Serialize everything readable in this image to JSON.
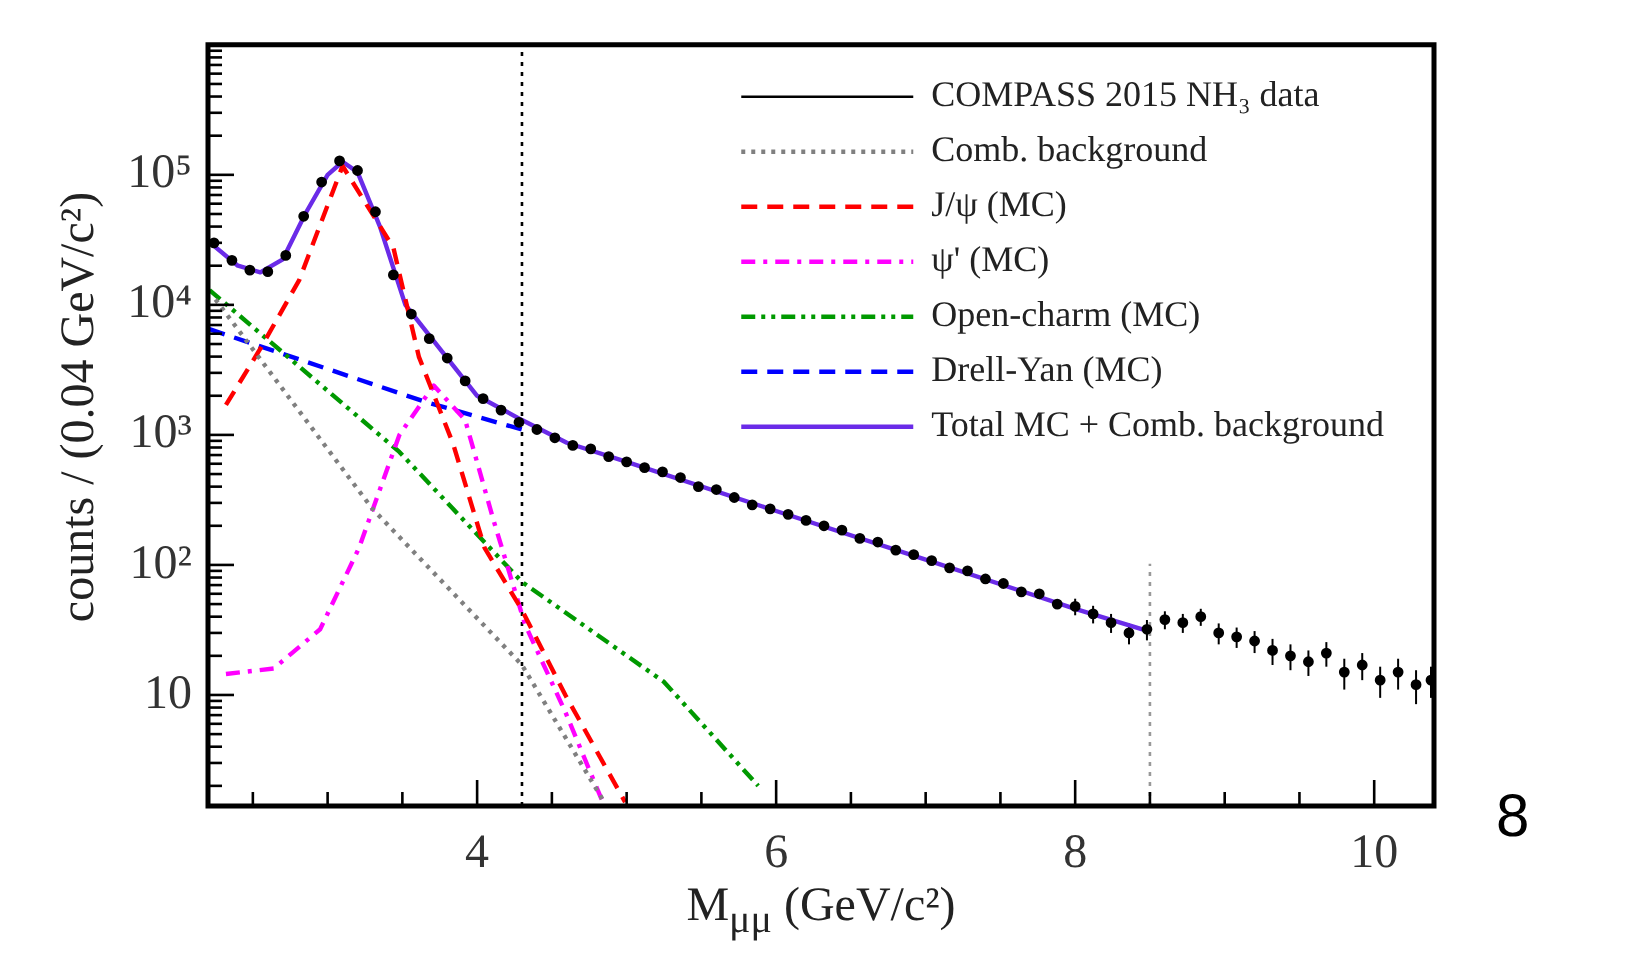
{
  "chart_data": {
    "type": "line",
    "xlabel": "M$_{μμ}$ (GeV/c²)",
    "ylabel": "counts / (0.04 GeV/c²)",
    "annotations": [
      "8"
    ],
    "log": "y",
    "legend": "top right",
    "xlim": [
      2.2,
      10.4
    ],
    "xticks": [
      {
        "value": 2.5,
        "label": null
      },
      {
        "value": 3,
        "label": null
      },
      {
        "value": 3.5,
        "label": null
      },
      4,
      {
        "value": 4.5,
        "label": null
      },
      {
        "value": 5,
        "label": null
      },
      {
        "value": 5.5,
        "label": null
      },
      6,
      {
        "value": 6.5,
        "label": null
      },
      {
        "value": 7,
        "label": null
      },
      {
        "value": 7.5,
        "label": null
      },
      8,
      {
        "value": 8.5,
        "label": null
      },
      {
        "value": 9,
        "label": null
      },
      {
        "value": 9.5,
        "label": null
      },
      10
    ],
    "ylim": [
      1.4,
      1000000
    ],
    "yticks": [
      {
        "value": 2,
        "label": null
      },
      {
        "value": 3,
        "label": null
      },
      {
        "value": 4,
        "label": null
      },
      {
        "value": 5,
        "label": null
      },
      {
        "value": 6,
        "label": null
      },
      {
        "value": 7,
        "label": null
      },
      {
        "value": 8,
        "label": null
      },
      {
        "value": 9,
        "label": null
      },
      10,
      {
        "value": 20,
        "label": null
      },
      {
        "value": 30,
        "label": null
      },
      {
        "value": 40,
        "label": null
      },
      {
        "value": 50,
        "label": null
      },
      {
        "value": 60,
        "label": null
      },
      {
        "value": 70,
        "label": null
      },
      {
        "value": 80,
        "label": null
      },
      {
        "value": 90,
        "label": null
      },
      {
        "value": 100,
        "label": "10²"
      },
      {
        "value": 200,
        "label": null
      },
      {
        "value": 300,
        "label": null
      },
      {
        "value": 400,
        "label": null
      },
      {
        "value": 500,
        "label": null
      },
      {
        "value": 600,
        "label": null
      },
      {
        "value": 700,
        "label": null
      },
      {
        "value": 800,
        "label": null
      },
      {
        "value": 900,
        "label": null
      },
      {
        "value": 1000,
        "label": "10³"
      },
      {
        "value": 2000,
        "label": null
      },
      {
        "value": 3000,
        "label": null
      },
      {
        "value": 4000,
        "label": null
      },
      {
        "value": 5000,
        "label": null
      },
      {
        "value": 6000,
        "label": null
      },
      {
        "value": 7000,
        "label": null
      },
      {
        "value": 8000,
        "label": null
      },
      {
        "value": 9000,
        "label": null
      },
      {
        "value": 10000,
        "label": "10⁴"
      },
      {
        "value": 20000,
        "label": null
      },
      {
        "value": 30000,
        "label": null
      },
      {
        "value": 40000,
        "label": null
      },
      {
        "value": 50000,
        "label": null
      },
      {
        "value": 60000,
        "label": null
      },
      {
        "value": 70000,
        "label": null
      },
      {
        "value": 80000,
        "label": null
      },
      {
        "value": 90000,
        "label": null
      },
      {
        "value": 100000,
        "label": "10⁵"
      },
      {
        "value": 200000,
        "label": null
      },
      {
        "value": 300000,
        "label": null
      },
      {
        "value": 400000,
        "label": null
      },
      {
        "value": 500000,
        "label": null
      },
      {
        "value": 600000,
        "label": null
      },
      {
        "value": 700000,
        "label": null
      },
      {
        "value": 800000,
        "label": null
      },
      {
        "value": 900000,
        "label": null
      }
    ],
    "ref_lines": [
      {
        "axis": "x",
        "value": 4.3,
        "color": "#000000",
        "line_style": "dotted"
      },
      {
        "axis": "x",
        "value": 8.5,
        "color": "#999999",
        "line_style": "dotted"
      }
    ],
    "series": [
      {
        "name": "COMPASS 2015 NH₃ data",
        "type": "scatter",
        "marker": "circle",
        "color": "#000000",
        "x": [
          2.24,
          2.36,
          2.48,
          2.6,
          2.72,
          2.84,
          2.96,
          3.08,
          3.2,
          3.32,
          3.44,
          3.56,
          3.68,
          3.8,
          3.92,
          4.04,
          4.16,
          4.28,
          4.4,
          4.52,
          4.64,
          4.76,
          4.88,
          5.0,
          5.12,
          5.24,
          5.36,
          5.48,
          5.6,
          5.72,
          5.84,
          5.96,
          6.08,
          6.2,
          6.32,
          6.44,
          6.56,
          6.68,
          6.8,
          6.92,
          7.04,
          7.16,
          7.28,
          7.4,
          7.52,
          7.64,
          7.76,
          7.88,
          8.0,
          8.12,
          8.24,
          8.36,
          8.48,
          8.6,
          8.72,
          8.84,
          8.96,
          9.08,
          9.2,
          9.32,
          9.44,
          9.56,
          9.68,
          9.8,
          9.92,
          10.04,
          10.16,
          10.28,
          10.38
        ],
        "values": [
          30000,
          22000,
          18500,
          18000,
          24000,
          48000,
          88000,
          128000,
          108000,
          52000,
          17000,
          8500,
          5500,
          3900,
          2600,
          1900,
          1550,
          1250,
          1100,
          950,
          830,
          780,
          680,
          620,
          560,
          520,
          470,
          400,
          380,
          330,
          290,
          270,
          245,
          220,
          200,
          185,
          160,
          150,
          130,
          120,
          108,
          95,
          90,
          78,
          72,
          62,
          60,
          50,
          48,
          42,
          36,
          30,
          32,
          38,
          36,
          40,
          30,
          28,
          26,
          22,
          20,
          18,
          21,
          15,
          17,
          13,
          15,
          12,
          13
        ],
        "errors": [
          null,
          null,
          null,
          null,
          null,
          null,
          null,
          null,
          null,
          null,
          null,
          null,
          null,
          null,
          null,
          null,
          null,
          null,
          null,
          null,
          null,
          null,
          null,
          null,
          null,
          null,
          null,
          null,
          null,
          null,
          null,
          null,
          null,
          null,
          null,
          null,
          null,
          null,
          null,
          null,
          null,
          null,
          null,
          null,
          null,
          null,
          null,
          null,
          7,
          6.5,
          6,
          5.5,
          5.7,
          6,
          6,
          6,
          5.5,
          5,
          5,
          5,
          4.5,
          4,
          4.5,
          4,
          4,
          3.5,
          4,
          3.5,
          3.5
        ]
      },
      {
        "name": "Comb. background",
        "line_style": "dotted",
        "color": "#808080",
        "x": [
          2.25,
          3.3,
          4.3,
          4.85
        ],
        "values": [
          11000,
          270,
          17,
          1.5
        ]
      },
      {
        "name": "J/ψ (MC)",
        "line_style": "dashed",
        "color": "#ff0000",
        "x": [
          2.32,
          2.55,
          2.81,
          3.1,
          3.44,
          3.61,
          3.84,
          4.05,
          4.3,
          4.59,
          4.99
        ],
        "values": [
          1700,
          4600,
          15500,
          117000,
          27500,
          4000,
          850,
          135,
          45,
          10,
          1.5
        ]
      },
      {
        "name": "ψ' (MC)",
        "line_style": "dashdot",
        "color": "#ff00ff",
        "x": [
          2.32,
          2.64,
          2.95,
          3.21,
          3.48,
          3.71,
          3.92,
          4.11,
          4.32,
          4.59,
          4.84
        ],
        "values": [
          14.5,
          16,
          32,
          135,
          1000,
          2400,
          1300,
          220,
          35,
          7.4,
          1.5
        ]
      },
      {
        "name": "Open-charm (MC)",
        "line_style": "dashdotdot",
        "color": "#009900",
        "x": [
          2.21,
          3.48,
          4.3,
          5.25,
          5.88
        ],
        "values": [
          13000,
          740,
          74,
          12.6,
          2.0
        ]
      },
      {
        "name": "Drell-Yan (MC)",
        "line_style": "dashed",
        "color": "#0000ff",
        "x": [
          2.21,
          3.65,
          4.3
        ],
        "values": [
          6500,
          1800,
          1100
        ]
      },
      {
        "name": "Total MC + Comb. background",
        "line_style": "solid",
        "color": "#6a2be8",
        "x": [
          2.2,
          2.4,
          2.55,
          2.7,
          2.85,
          3.0,
          3.1,
          3.2,
          3.35,
          3.52,
          3.75,
          4.0,
          4.3,
          4.6,
          5.0,
          6.0,
          7.0,
          8.0,
          8.45
        ],
        "values": [
          31000,
          20000,
          17800,
          22400,
          50000,
          100000,
          126000,
          105000,
          40000,
          10000,
          4600,
          2000,
          1300,
          870,
          620,
          260,
          110,
          46,
          32
        ]
      }
    ]
  }
}
